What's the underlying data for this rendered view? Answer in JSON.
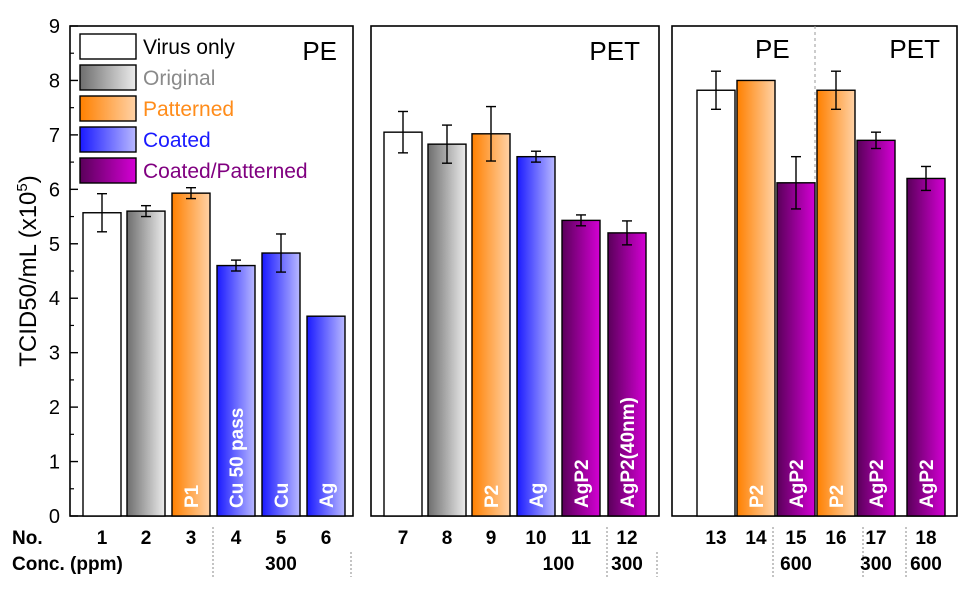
{
  "chart_data": {
    "type": "bar",
    "ylabel": "TCID50/mL (x10",
    "ylabel_exp": "5",
    "ylabel_close": ")",
    "ylim": [
      0,
      9
    ],
    "yticks": [
      "0",
      "1",
      "2",
      "3",
      "4",
      "5",
      "6",
      "7",
      "8",
      "9"
    ],
    "legend": [
      {
        "key": "virus",
        "label": "Virus only",
        "text_color": "#000000"
      },
      {
        "key": "original",
        "label": "Original",
        "text_color": "#8a8a8a"
      },
      {
        "key": "patterned",
        "label": "Patterned",
        "text_color": "#ff8c1a"
      },
      {
        "key": "coated",
        "label": "Coated",
        "text_color": "#1a1aff"
      },
      {
        "key": "coatpat",
        "label": "Coated/Patterned",
        "text_color": "#800080"
      }
    ],
    "panels": [
      {
        "title": "PE",
        "title2": ""
      },
      {
        "title": "PET",
        "title2": ""
      },
      {
        "title": "PE",
        "title2": "PET"
      }
    ],
    "row_labels": {
      "no": "No.",
      "conc": "Conc. (ppm)"
    },
    "bars": [
      {
        "no": "1",
        "type": "virus",
        "value": 5.57,
        "err": 0.35,
        "label": ""
      },
      {
        "no": "2",
        "type": "original",
        "value": 5.6,
        "err": 0.1,
        "label": ""
      },
      {
        "no": "3",
        "type": "patterned",
        "value": 5.93,
        "err": 0.1,
        "label": "P1"
      },
      {
        "no": "4",
        "type": "coated",
        "value": 4.6,
        "err": 0.1,
        "label": "Cu 50 pass"
      },
      {
        "no": "5",
        "type": "coated",
        "value": 4.83,
        "err": 0.35,
        "label": "Cu"
      },
      {
        "no": "6",
        "type": "coated",
        "value": 3.67,
        "err": 0,
        "label": "Ag"
      },
      {
        "no": "7",
        "type": "virus",
        "value": 7.05,
        "err": 0.38,
        "label": ""
      },
      {
        "no": "8",
        "type": "original",
        "value": 6.83,
        "err": 0.35,
        "label": ""
      },
      {
        "no": "9",
        "type": "patterned",
        "value": 7.02,
        "err": 0.5,
        "label": "P2"
      },
      {
        "no": "10",
        "type": "coated",
        "value": 6.6,
        "err": 0.1,
        "label": "Ag"
      },
      {
        "no": "11",
        "type": "coatpat",
        "value": 5.43,
        "err": 0.1,
        "label": "AgP2"
      },
      {
        "no": "12",
        "type": "coatpat",
        "value": 5.2,
        "err": 0.22,
        "label": "AgP2(40nm)"
      },
      {
        "no": "13",
        "type": "virus",
        "value": 7.82,
        "err": 0.35,
        "label": ""
      },
      {
        "no": "14",
        "type": "patterned",
        "value": 8.0,
        "err": 0,
        "label": "P2"
      },
      {
        "no": "15",
        "type": "coatpat",
        "value": 6.12,
        "err": 0.48,
        "label": "AgP2"
      },
      {
        "no": "16",
        "type": "patterned",
        "value": 7.82,
        "err": 0.35,
        "label": "P2"
      },
      {
        "no": "17",
        "type": "coatpat",
        "value": 6.9,
        "err": 0.15,
        "label": "AgP2"
      },
      {
        "no": "18",
        "type": "coatpat",
        "value": 6.2,
        "err": 0.22,
        "label": "AgP2"
      }
    ],
    "conc_labels": [
      {
        "text": "300",
        "bars": [
          "4",
          "5",
          "6"
        ]
      },
      {
        "text": "100",
        "bars": [
          "10",
          "11"
        ]
      },
      {
        "text": "300",
        "bars": [
          "12"
        ]
      },
      {
        "text": "600",
        "bars": [
          "15"
        ]
      },
      {
        "text": "300",
        "bars": [
          "17"
        ]
      },
      {
        "text": "600",
        "bars": [
          "18"
        ]
      }
    ]
  }
}
